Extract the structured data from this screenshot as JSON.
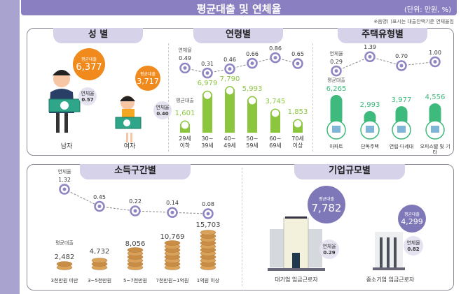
{
  "header": {
    "title": "평균대출 및 연체율",
    "unit": "(단위: 만원, %)",
    "note": "※음영(   )표시는 대출잔액기준 연체율임"
  },
  "labels": {
    "rate": "연체율",
    "loan": "평균대출"
  },
  "colors": {
    "title_bar": "#8a7fc0",
    "tab": "#d6d2ea",
    "gender_bubble": "#f08a1c",
    "age_bar": "#8cc63f",
    "housing_bar": "#3dba7c",
    "coin": "#d9a25a",
    "company_bubble": "#7f78b8",
    "rate_marker": "#8e86c2"
  },
  "chart_data": [
    {
      "type": "infographic",
      "title": "성 별",
      "categories": [
        "남자",
        "여자"
      ],
      "loan": [
        6377,
        3717
      ],
      "loan_labels": [
        "6,377",
        "3,717"
      ],
      "rate": [
        0.57,
        0.4
      ],
      "rate_labels": [
        "0.57",
        "0.40"
      ]
    },
    {
      "type": "bar+line",
      "title": "연령별",
      "categories": [
        [
          "29세",
          "이하"
        ],
        [
          "30~",
          "39세"
        ],
        [
          "40~",
          "49세"
        ],
        [
          "50~",
          "59세"
        ],
        [
          "60~",
          "69세"
        ],
        [
          "70세",
          "이상"
        ]
      ],
      "loan": [
        1601,
        6979,
        7790,
        5993,
        3745,
        1853
      ],
      "loan_labels": [
        "1,601",
        "6,979",
        "7,790",
        "5,993",
        "3,745",
        "1,853"
      ],
      "rate": [
        0.49,
        0.31,
        0.46,
        0.66,
        0.86,
        0.65
      ],
      "rate_labels": [
        "0.49",
        "0.31",
        "0.46",
        "0.66",
        "0.86",
        "0.65"
      ]
    },
    {
      "type": "bar+line",
      "title": "주택유형별",
      "categories": [
        "아파트",
        "단독주택",
        "연립·다세대",
        "오피스텔 및 기타"
      ],
      "loan": [
        6265,
        2993,
        3977,
        4556
      ],
      "loan_labels": [
        "6,265",
        "2,993",
        "3,977",
        "4,556"
      ],
      "rate": [
        0.29,
        1.39,
        0.7,
        1.0
      ],
      "rate_labels": [
        "0.29",
        "1.39",
        "0.70",
        "1.00"
      ]
    },
    {
      "type": "bar+line",
      "title": "소득구간별",
      "categories": [
        "3천만원 미만",
        "3~5천만원",
        "5~7천만원",
        "7천만원~1억원",
        "1억원 이상"
      ],
      "loan": [
        2482,
        4732,
        8056,
        10769,
        15703
      ],
      "loan_labels": [
        "2,482",
        "4,732",
        "8,056",
        "10,769",
        "15,703"
      ],
      "rate": [
        1.32,
        0.45,
        0.22,
        0.14,
        0.08
      ],
      "rate_labels": [
        "1.32",
        "0.45",
        "0.22",
        "0.14",
        "0.08"
      ]
    },
    {
      "type": "infographic",
      "title": "기업규모별",
      "categories": [
        "대기업 임금근로자",
        "중소기업 임금근로자"
      ],
      "loan": [
        7782,
        4299
      ],
      "loan_labels": [
        "7,782",
        "4,299"
      ],
      "rate": [
        0.29,
        0.82
      ],
      "rate_labels": [
        "0.29",
        "0.82"
      ]
    }
  ]
}
